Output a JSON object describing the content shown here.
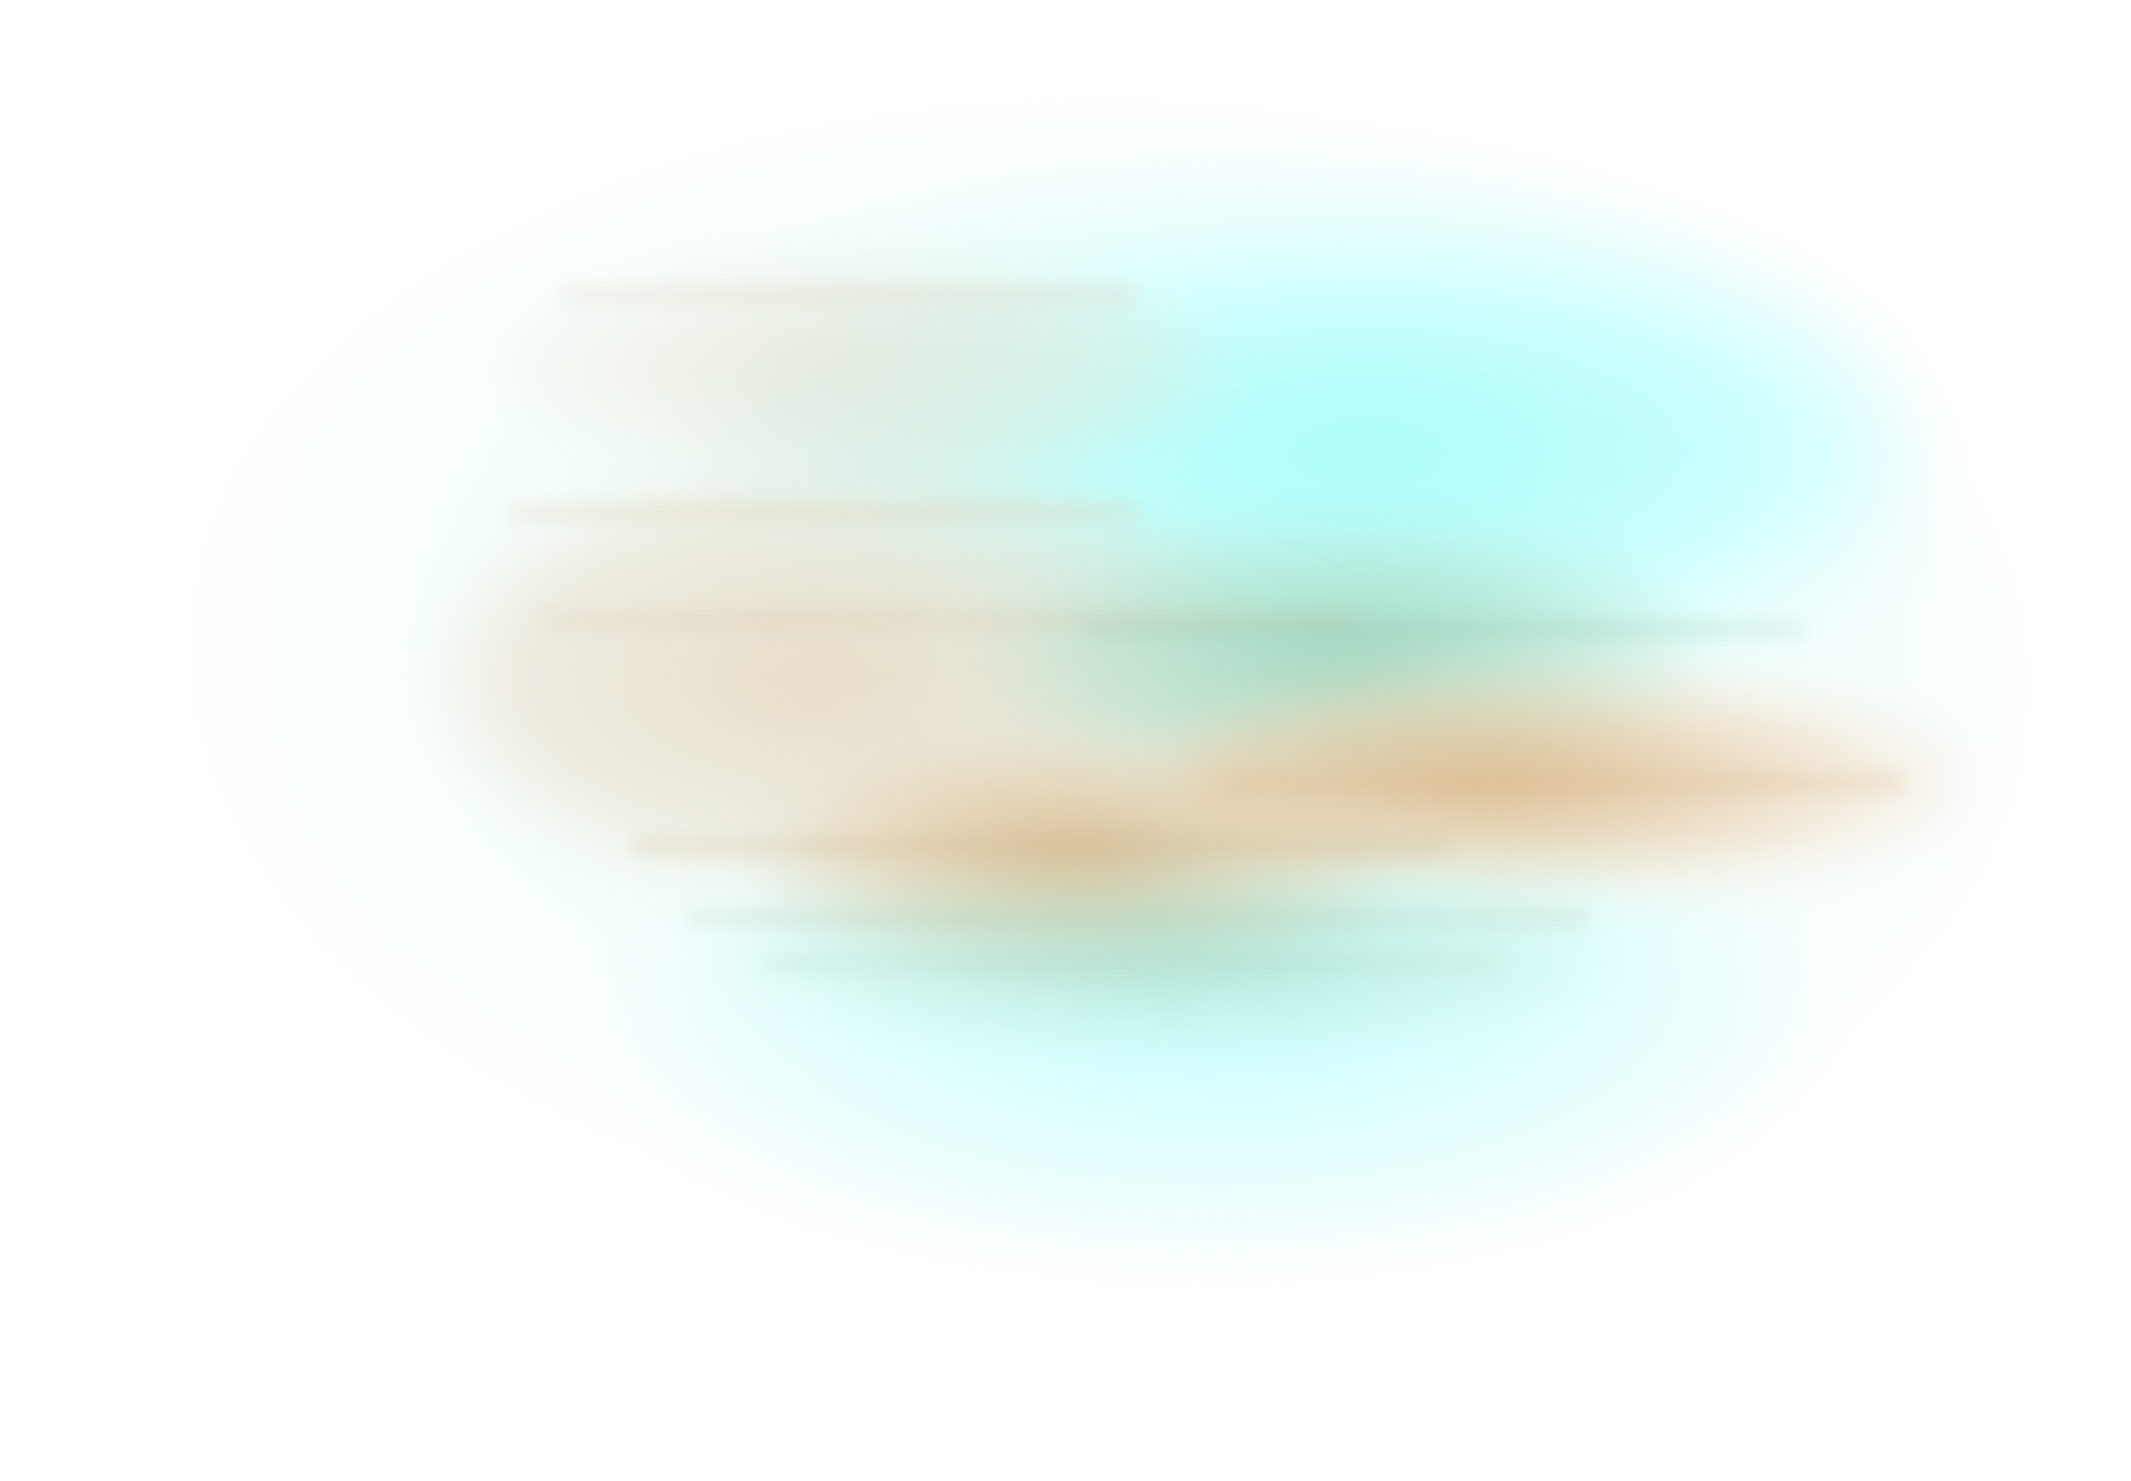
{
  "image": {
    "colors": {
      "background": "#ffffff",
      "cyan_glow": "#a9fdfb",
      "pale_cyan": "#e0fffe",
      "tan": "#e4d0b2",
      "green": "#96cdaf",
      "orange": "#dab482"
    }
  }
}
